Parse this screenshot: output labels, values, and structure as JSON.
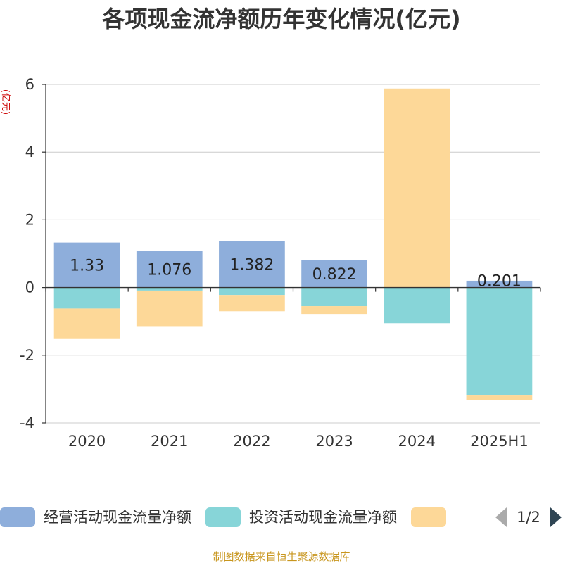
{
  "chart_data": {
    "type": "bar",
    "stacked": true,
    "title": "各项现金流净额历年变化情况(亿元)",
    "unit_label": "(亿元)",
    "categories": [
      "2020",
      "2021",
      "2022",
      "2023",
      "2024",
      "2025H1"
    ],
    "ylim": [
      -4,
      6
    ],
    "yticks": [
      -4,
      -2,
      0,
      2,
      4,
      6
    ],
    "grid": true,
    "series": [
      {
        "name": "经营活动现金流量净额",
        "color": "#8eaedb",
        "values": [
          1.33,
          1.076,
          1.382,
          0.822,
          -0.003,
          0.201
        ],
        "labels": [
          "1.33",
          "1.076",
          "1.382",
          "0.822",
          "",
          "0.201"
        ]
      },
      {
        "name": "投资活动现金流量净额",
        "color": "#87d5d8",
        "values": [
          -0.62,
          -0.09,
          -0.22,
          -0.55,
          -1.05,
          -3.17
        ]
      },
      {
        "name": "",
        "color": "#fdd898",
        "values": [
          -0.88,
          -1.05,
          -0.48,
          -0.23,
          5.88,
          -0.15
        ]
      }
    ],
    "legend": {
      "position": "bottom",
      "page": "1/2"
    },
    "source": "制图数据来自恒生聚源数据库"
  }
}
